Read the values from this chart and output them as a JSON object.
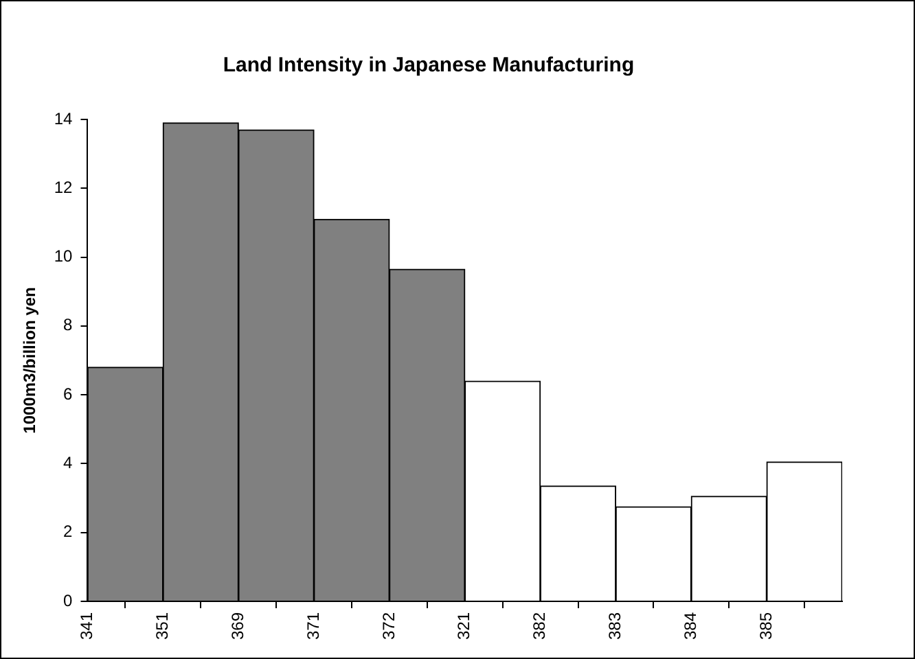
{
  "chart_data": {
    "type": "bar",
    "title": "Land Intensity in Japanese Manufacturing",
    "ylabel": "1000m3/billion yen",
    "categories": [
      "341",
      "351",
      "369",
      "371",
      "372",
      "321",
      "382",
      "383",
      "384",
      "385"
    ],
    "values": [
      6.8,
      13.9,
      13.7,
      11.1,
      9.65,
      6.4,
      3.35,
      2.75,
      3.05,
      4.05
    ],
    "colors": [
      "#808080",
      "#808080",
      "#808080",
      "#808080",
      "#808080",
      "#ffffff",
      "#ffffff",
      "#ffffff",
      "#ffffff",
      "#ffffff"
    ],
    "ylim": [
      0,
      14
    ],
    "yticks": [
      0,
      2,
      4,
      6,
      8,
      10,
      12,
      14
    ],
    "grid": false,
    "legend": false
  }
}
